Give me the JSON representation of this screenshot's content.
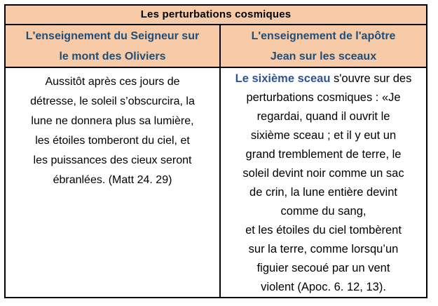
{
  "table": {
    "title": "Les perturbations cosmiques",
    "columns": [
      {
        "header": "L'enseignement du Seigneur sur\nle mont des Oliviers"
      },
      {
        "header": "L'enseignement de l'apôtre\nJean sur les sceaux"
      }
    ],
    "left_cell": {
      "text": "Aussitôt après ces jours de\ndétresse, le soleil s’obscurcira, la\nlune ne donnera plus sa lumière,\nles étoiles tomberont du ciel, et\nles puissances des cieux seront\nébranlées. (Matt 24. 29)"
    },
    "right_cell": {
      "lead": "Le sixième sceau",
      "text": " s'ouvre sur des\nperturbations cosmiques : «Je\nregardai, quand il ouvrit le\nsixième sceau ; et il y eut un\ngrand tremblement de terre, le\nsoleil devint noir comme un sac\nde crin, la lune entière devint\ncomme du sang,\net les étoiles du ciel tombèrent\nsur la terre, comme lorsqu’un\nfiguier secoué par un vent\nviolent (Apoc. 6. 12, 13)."
    },
    "colors": {
      "header_bg": "#F7CBA8",
      "header_text": "#1F4E79",
      "lead_text": "#2F5496",
      "body_text": "#000000",
      "border": "#000000"
    }
  }
}
